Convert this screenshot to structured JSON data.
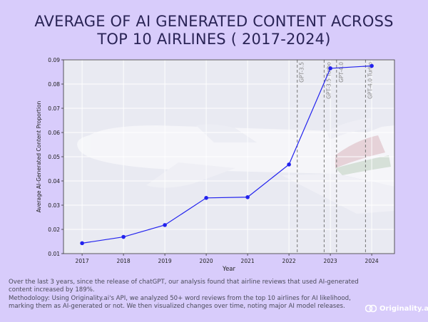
{
  "title_line1": "AVERAGE OF AI GENERATED CONTENT ACROSS",
  "title_line2": "TOP 10 AIRLINES ( 2017-2024)",
  "footer": {
    "line1": "Over the last 3 years, since the release of chatGPT, our analysis found that airline reviews that used AI-generated content increased by 189%.",
    "line2": "Methodology: Using Originality.ai's API, we analyzed 50+ word reviews from the top 10 airlines for AI likelihood, marking them as AI-generated or not. We then visualized changes over time, noting major AI model releases."
  },
  "logo_text": "Originality.ai",
  "colors": {
    "background": "#d8ccfb",
    "series": "#2222ee",
    "title": "#2a2456",
    "annotation": "#888888"
  },
  "chart_data": {
    "type": "line",
    "xlabel": "Year",
    "ylabel": "Average AI-Generated Content Proportion",
    "x": [
      2017,
      2018,
      2019,
      2020,
      2021,
      2022,
      2023,
      2024
    ],
    "x_ticks": [
      "2017",
      "2018",
      "2019",
      "2020",
      "2021",
      "2022",
      "2023",
      "2024"
    ],
    "y_ticks": [
      "0.01",
      "0.02",
      "0.03",
      "0.04",
      "0.05",
      "0.06",
      "0.07",
      "0.08",
      "0.09"
    ],
    "xlim": [
      2016.55,
      2024.55
    ],
    "ylim": [
      0.01,
      0.09
    ],
    "grid": true,
    "series": [
      {
        "values": [
          0.0143,
          0.0169,
          0.0218,
          0.033,
          0.0333,
          0.0468,
          0.0865,
          0.0875
        ]
      }
    ],
    "annotations": [
      {
        "x": 2022.2,
        "label": "GPT-3.5"
      },
      {
        "x": 2022.85,
        "label": "GPT-3.5 Turbo"
      },
      {
        "x": 2023.15,
        "label": "GPT-4.0"
      },
      {
        "x": 2023.85,
        "label": "GPT-4.0 Turbo"
      }
    ]
  }
}
